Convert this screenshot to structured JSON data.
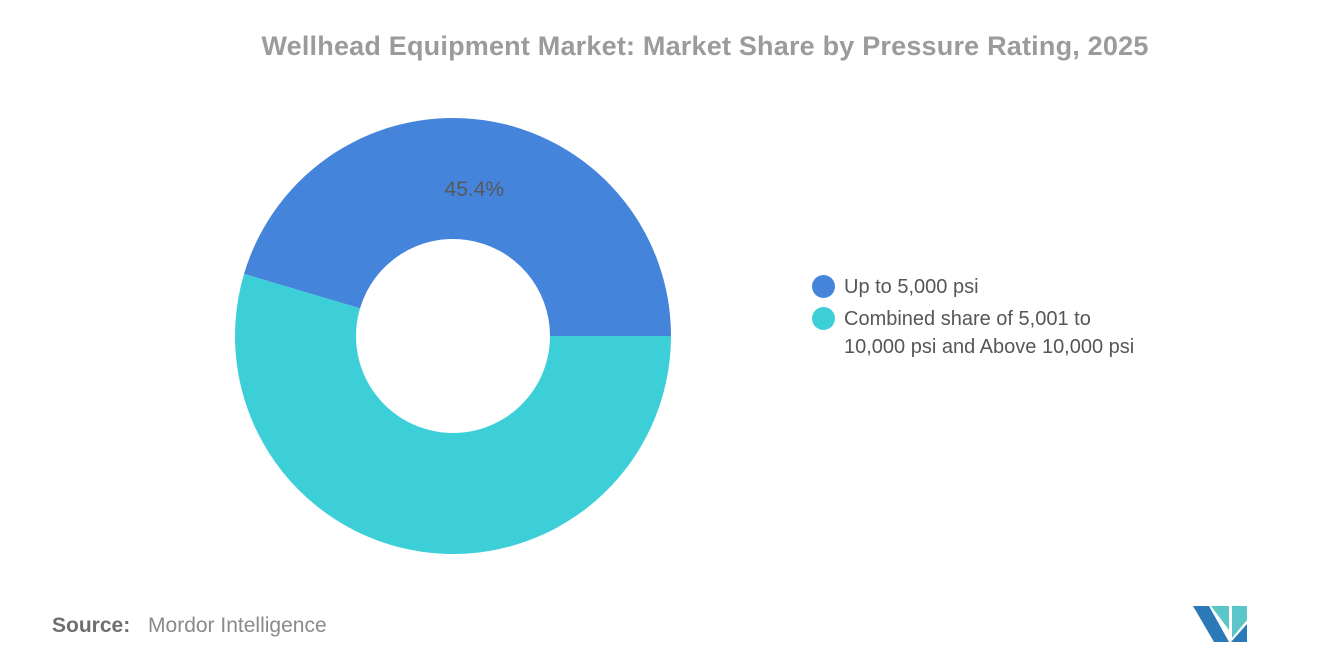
{
  "header": {
    "title": "Wellhead Equipment Market: Market Share by Pressure Rating, 2025"
  },
  "chart_data": {
    "type": "pie",
    "subtype": "donut",
    "title": "Wellhead Equipment Market: Market Share by Pressure Rating, 2025",
    "inner_radius_ratio": 0.45,
    "start_angle_deg": 0,
    "direction": "counterclockwise",
    "legend_position": "right",
    "slices": [
      {
        "label": "Up to 5,000 psi",
        "value": 45.4,
        "color": "#4484DB",
        "data_label": "45.4%"
      },
      {
        "label": "Combined share of 5,001 to 10,000 psi and Above 10,000 psi",
        "value": 54.6,
        "color": "#3DCFD8",
        "data_label": ""
      }
    ]
  },
  "legend": {
    "items": [
      {
        "label": "Up to 5,000 psi",
        "color": "#4484DB"
      },
      {
        "label": "Combined share of 5,001 to\n10,000 psi and Above 10,000 psi",
        "color": "#3DCFD8"
      }
    ]
  },
  "source": {
    "prefix": "Source:",
    "name": "Mordor Intelligence"
  },
  "logo": {
    "blue": "#2B79B7",
    "teal": "#5BC6CA"
  },
  "colors": {
    "title_text": "#9B9B9B",
    "data_label_text": "#58585B",
    "legend_text": "#55565A",
    "source_text": "#6E6E6E"
  }
}
